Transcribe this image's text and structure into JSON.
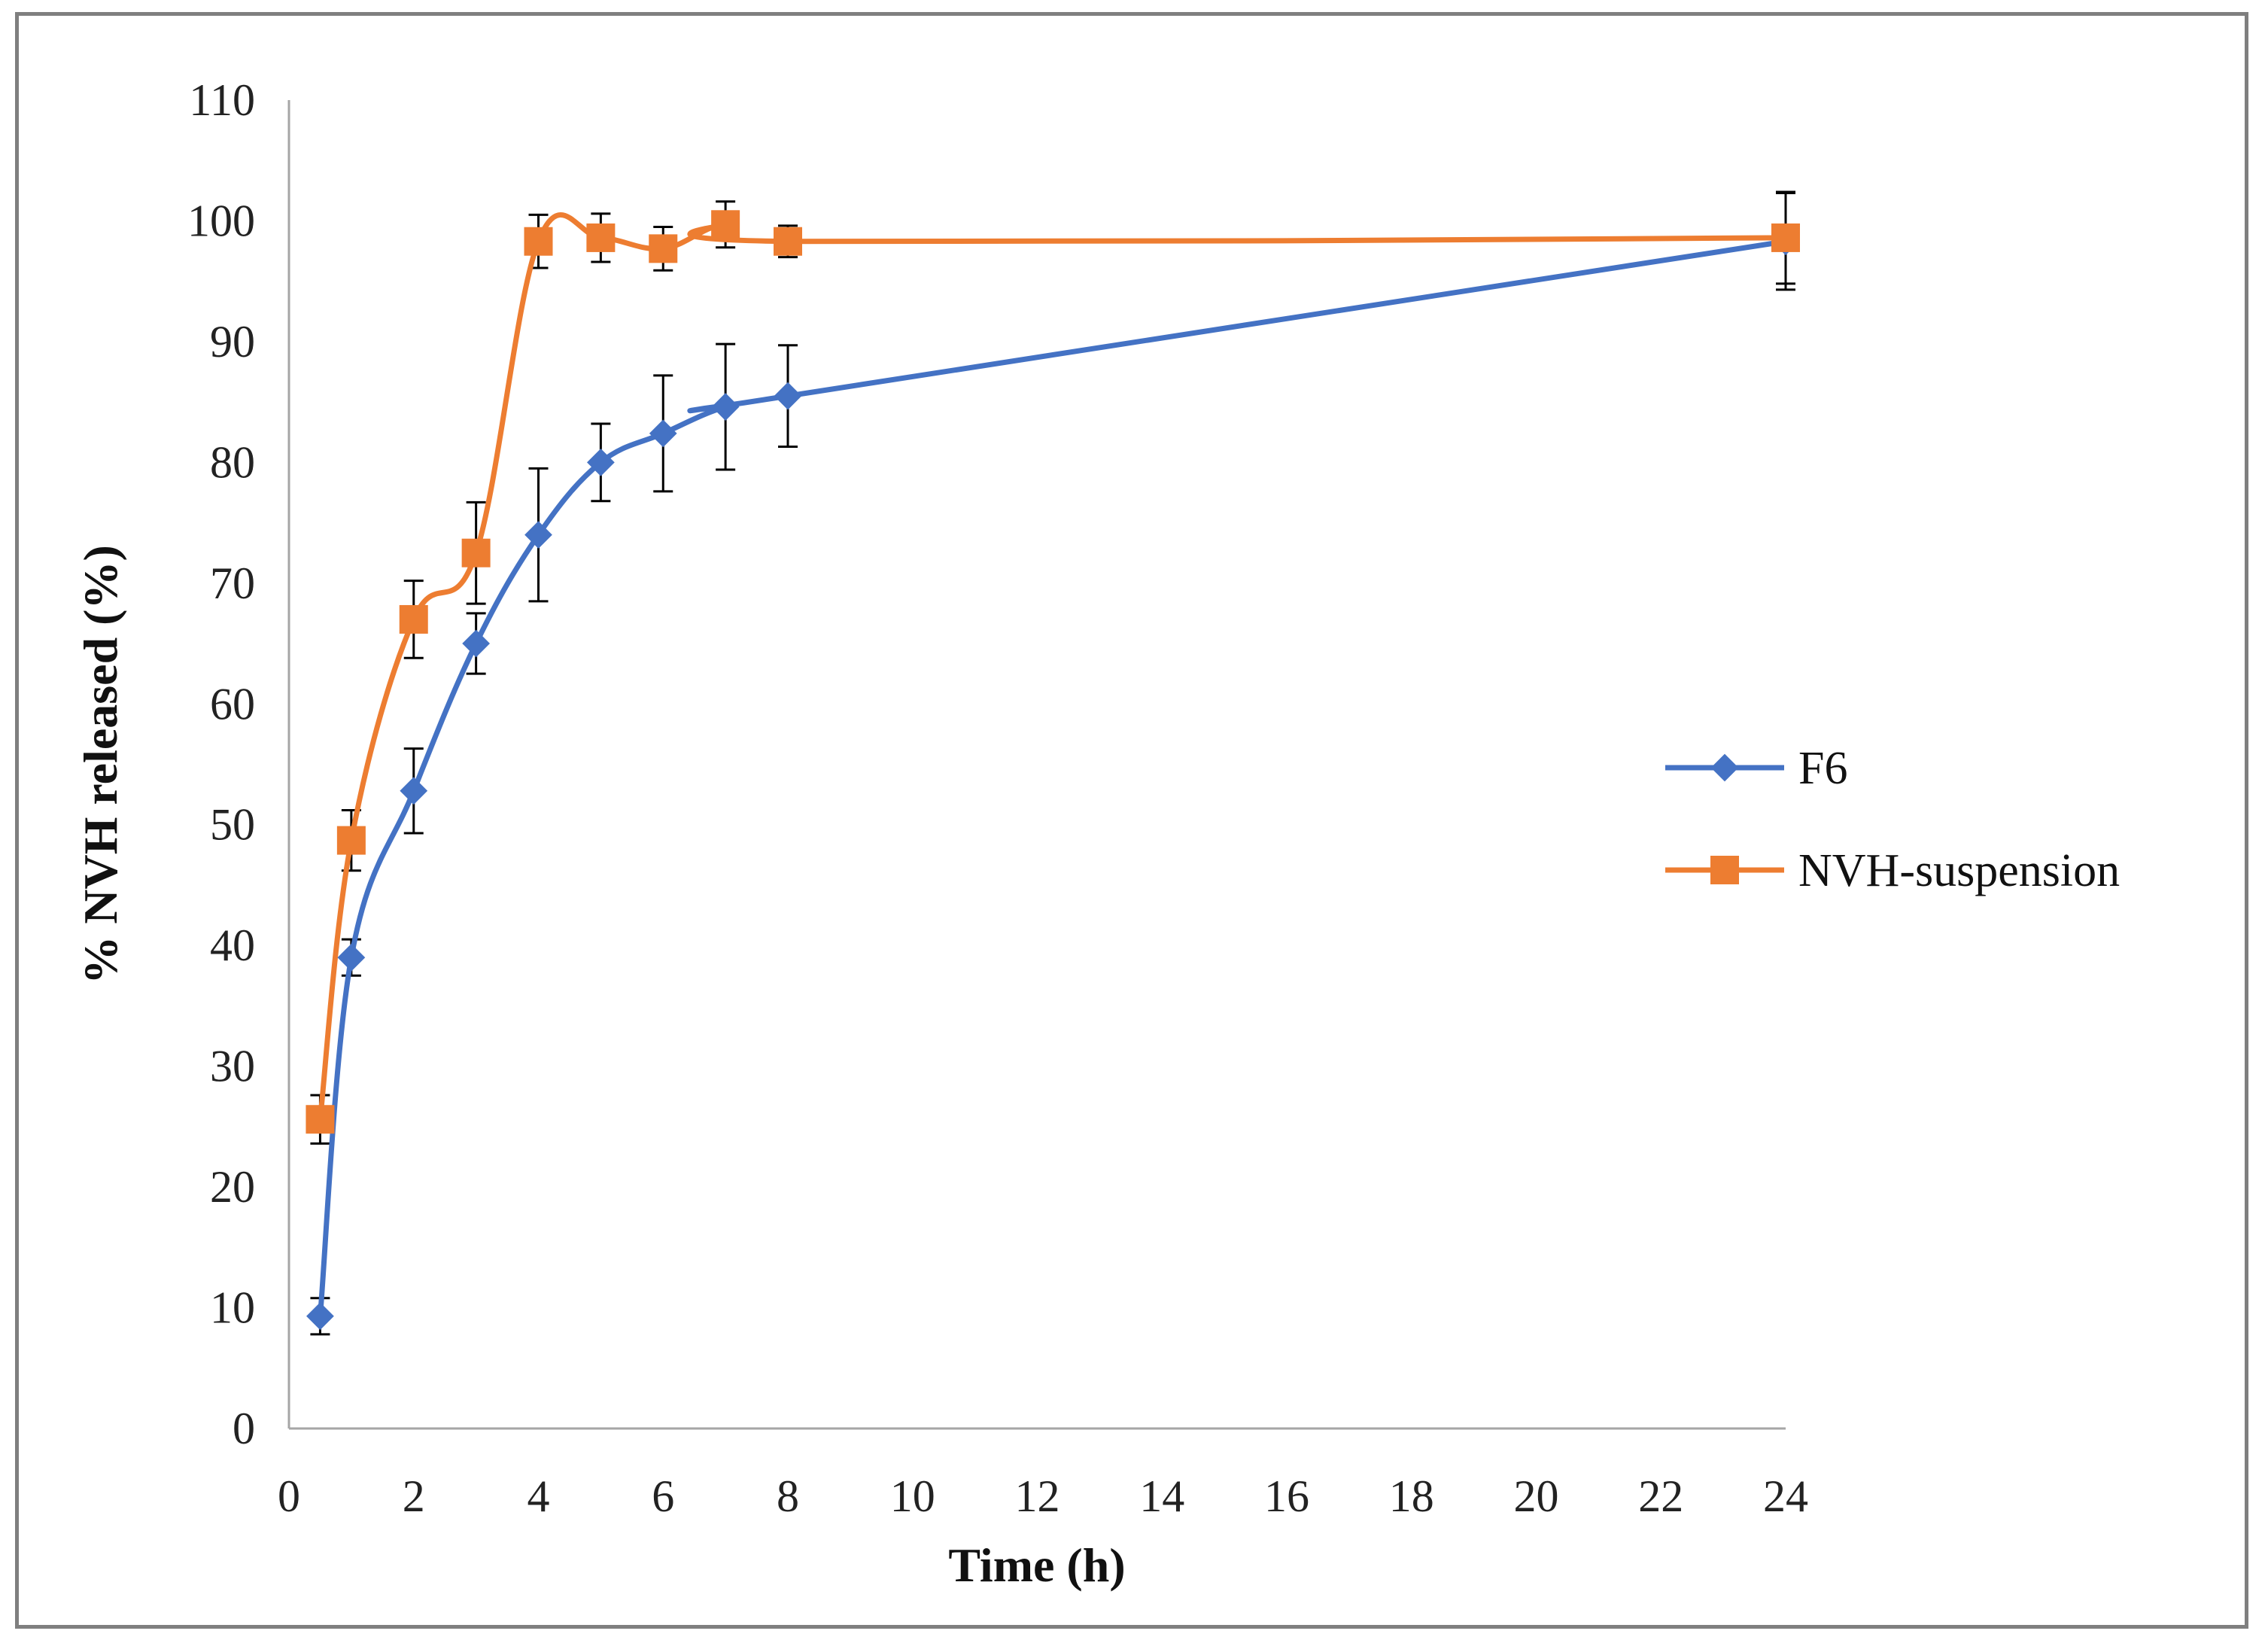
{
  "chart_data": {
    "type": "line",
    "title": "",
    "xlabel": "Time (h)",
    "ylabel": "% NVH released (%)",
    "xlim": [
      0,
      24
    ],
    "ylim": [
      0,
      110
    ],
    "xticks": [
      0,
      2,
      4,
      6,
      8,
      10,
      12,
      14,
      16,
      18,
      20,
      22,
      24
    ],
    "yticks": [
      0,
      10,
      20,
      30,
      40,
      50,
      60,
      70,
      80,
      90,
      100,
      110
    ],
    "x": [
      0.5,
      1,
      2,
      3,
      4,
      5,
      6,
      7,
      8,
      24
    ],
    "grid": false,
    "legend_position": "right",
    "series": [
      {
        "name": "F6",
        "color": "#4472c4",
        "marker": "diamond",
        "values": [
          9.3,
          39,
          52.8,
          65,
          74,
          80,
          82.4,
          84.6,
          85.5,
          98.3
        ],
        "errors": [
          1.5,
          1.5,
          3.5,
          2.5,
          5.5,
          3.2,
          4.8,
          5.2,
          4.2,
          4.0
        ]
      },
      {
        "name": "NVH-suspension",
        "color": "#ed7d31",
        "marker": "square",
        "values": [
          25.6,
          48.7,
          67,
          72.5,
          98.3,
          98.6,
          97.7,
          99.7,
          98.3,
          98.6
        ],
        "errors": [
          2.0,
          2.5,
          3.2,
          4.2,
          2.2,
          2.0,
          1.8,
          1.9,
          1.3,
          3.8
        ]
      }
    ]
  }
}
